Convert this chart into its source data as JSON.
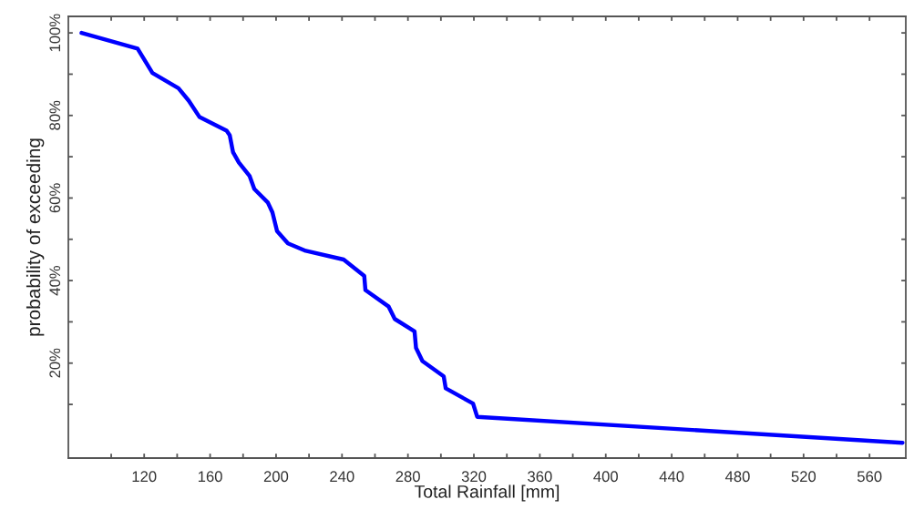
{
  "chart_data": {
    "type": "line",
    "xlabel": "Total Rainfall [mm]",
    "ylabel": "probability of exceeding",
    "series": [
      {
        "color": "#0000ff",
        "x": [
          82,
          116,
          125,
          140.8,
          147,
          153.6,
          170,
          171.9,
          173.9,
          177.4,
          184,
          186.8,
          195,
          197.8,
          200.6,
          207.2,
          218,
          241,
          253.5,
          254.2,
          268.3,
          272,
          284,
          284.9,
          288.8,
          301.7,
          302.9,
          319.5,
          322,
          580
        ],
        "values": [
          100,
          96.2,
          90.3,
          86.6,
          83.6,
          79.6,
          76.3,
          75.2,
          71.1,
          68.6,
          65.3,
          62.2,
          58.9,
          56.5,
          52,
          49,
          47.2,
          45.1,
          41.1,
          37.7,
          33.7,
          30.7,
          27.7,
          23.7,
          20.5,
          16.8,
          13.9,
          10.2,
          7.0,
          0.7
        ]
      }
    ],
    "xlim": [
      74,
      582
    ],
    "ylim": [
      -3,
      104
    ],
    "xticks": [
      {
        "value": 100,
        "label": null
      },
      120,
      {
        "value": 140,
        "label": null
      },
      160,
      {
        "value": 180,
        "label": null
      },
      200,
      {
        "value": 220,
        "label": null
      },
      240,
      {
        "value": 260,
        "label": null
      },
      280,
      {
        "value": 300,
        "label": null
      },
      320,
      {
        "value": 340,
        "label": null
      },
      360,
      {
        "value": 380,
        "label": null
      },
      400,
      {
        "value": 420,
        "label": null
      },
      440,
      {
        "value": 460,
        "label": null
      },
      480,
      {
        "value": 500,
        "label": null
      },
      520,
      {
        "value": 540,
        "label": null
      },
      560
    ],
    "yticks": [
      {
        "value": 10,
        "label": null
      },
      {
        "value": 20,
        "label": "20%"
      },
      {
        "value": 30,
        "label": null
      },
      {
        "value": 40,
        "label": "40%"
      },
      {
        "value": 50,
        "label": null
      },
      {
        "value": 60,
        "label": "60%"
      },
      {
        "value": 70,
        "label": null
      },
      {
        "value": 80,
        "label": "80%"
      },
      {
        "value": 90,
        "label": null
      },
      {
        "value": 100,
        "label": "100%"
      }
    ],
    "grid": false,
    "marker": "none",
    "line_style": "solid"
  }
}
